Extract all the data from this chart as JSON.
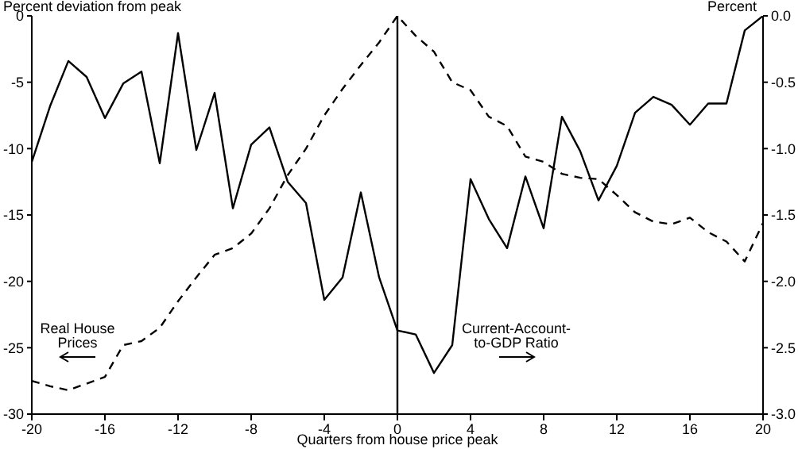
{
  "chart_data": {
    "type": "line",
    "xlabel": "Quarters from house price peak",
    "ylabel": "Percent deviation from peak",
    "y2label": "Percent",
    "x": [
      -20,
      -19,
      -18,
      -17,
      -16,
      -15,
      -14,
      -13,
      -12,
      -11,
      -10,
      -9,
      -8,
      -7,
      -6,
      -5,
      -4,
      -3,
      -2,
      -1,
      0,
      1,
      2,
      3,
      4,
      5,
      6,
      7,
      8,
      9,
      10,
      11,
      12,
      13,
      14,
      15,
      16,
      17,
      18,
      19,
      20
    ],
    "series": [
      {
        "name": "Real House Prices",
        "color": "#000000",
        "line_style": "dashed",
        "values": [
          -27.5,
          -27.9,
          -28.2,
          -27.7,
          -27.2,
          -24.8,
          -24.5,
          -23.5,
          -21.5,
          -19.7,
          -18.0,
          -17.5,
          -16.4,
          -14.5,
          -12.0,
          -10.0,
          -7.5,
          -5.5,
          -3.7,
          -2.0,
          0,
          -1.5,
          -2.7,
          -5.0,
          -5.6,
          -7.6,
          -8.3,
          -10.6,
          -11.0,
          -11.9,
          -12.2,
          -12.3,
          -13.5,
          -14.8,
          -15.5,
          -15.7,
          -15.2,
          -16.3,
          -17.0,
          -18.5,
          -15.6
        ]
      },
      {
        "name": "Current-Account-to-GDP Ratio",
        "color": "#000000",
        "line_style": "solid",
        "axis": "y2",
        "values": [
          -1.1,
          -0.68,
          -0.34,
          -0.46,
          -0.77,
          -0.51,
          -0.42,
          -1.11,
          -0.13,
          -1.01,
          -0.58,
          -1.45,
          -0.97,
          -0.84,
          -1.25,
          -1.41,
          -2.14,
          -1.97,
          -1.33,
          -1.97,
          -2.37,
          -2.4,
          -2.69,
          -2.48,
          -1.23,
          -1.53,
          -1.75,
          -1.21,
          -1.6,
          -0.76,
          -1.02,
          -1.39,
          -1.13,
          -0.73,
          -0.61,
          -0.67,
          -0.82,
          -0.66,
          -0.66,
          -0.11,
          0
        ]
      }
    ],
    "xlim": [
      -20,
      20
    ],
    "xticks": [
      -20,
      -16,
      -12,
      -8,
      -4,
      0,
      4,
      8,
      12,
      16,
      20
    ],
    "ylim": [
      -30,
      0
    ],
    "yticks": [
      0,
      -5,
      -10,
      -15,
      -20,
      -25,
      -30
    ],
    "y2lim": [
      -3,
      0
    ],
    "y2ticks": [
      {
        "value": 0,
        "label": "0.0"
      },
      {
        "value": -0.5,
        "label": "-0.5"
      },
      {
        "value": -1,
        "label": "-1.0"
      },
      {
        "value": -1.5,
        "label": "-1.5"
      },
      {
        "value": -2,
        "label": "-2.0"
      },
      {
        "value": -2.5,
        "label": "-2.5"
      },
      {
        "value": -3,
        "label": "-3.0"
      }
    ],
    "ref_lines": [
      {
        "axis": "x",
        "value": 0
      }
    ],
    "marker": "none"
  }
}
